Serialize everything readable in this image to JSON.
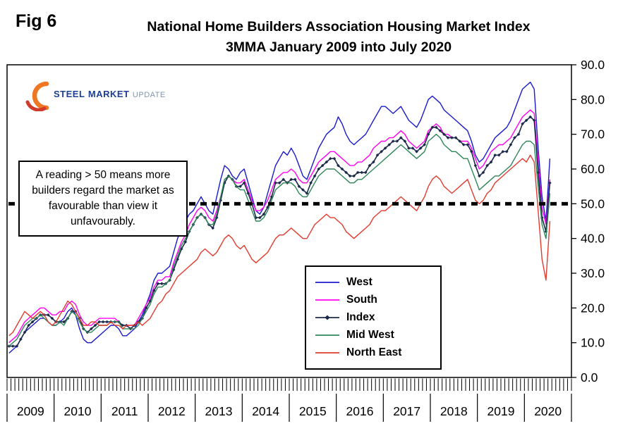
{
  "fig_label": "Fig 6",
  "title": {
    "line1": "National Home Builders Association Housing Market Index",
    "line2": "3MMA January 2009 into July 2020"
  },
  "logo": {
    "steel": "STEEL",
    "market": "MARKET",
    "update": "UPDATE"
  },
  "annotation": {
    "text": "A reading > 50 means more builders regard the market as favourable than view it unfavourably."
  },
  "chart_data": {
    "type": "line",
    "title": "National Home Builders Association Housing Market Index 3MMA January 2009 into July 2020",
    "xlabel": "",
    "ylabel": "",
    "x_unit": "month",
    "data_start": "2009-01",
    "data_end": "2020-07",
    "axis_months_total": 144,
    "years": [
      "2009",
      "2010",
      "2011",
      "2012",
      "2013",
      "2014",
      "2015",
      "2016",
      "2017",
      "2018",
      "2019",
      "2020"
    ],
    "ylim": [
      0,
      90
    ],
    "ytick_step": 10,
    "ytick_labels": [
      "0.0",
      "10.0",
      "20.0",
      "30.0",
      "40.0",
      "50.0",
      "60.0",
      "70.0",
      "80.0",
      "90.0"
    ],
    "grid": false,
    "legend_position": "inside-lower-middle",
    "reference_line": {
      "value": 50,
      "style": "dashed",
      "color": "#000000",
      "width": 5
    },
    "series": [
      {
        "name": "West",
        "color": "#1a1acd",
        "marker": false,
        "values": [
          7,
          8,
          9,
          11,
          13,
          14,
          15,
          16,
          17,
          17,
          16,
          15,
          15,
          16,
          17,
          19,
          20,
          18,
          14,
          11,
          10,
          10,
          11,
          12,
          13,
          14,
          15,
          15,
          14,
          12,
          12,
          13,
          14,
          16,
          18,
          21,
          24,
          28,
          30,
          30,
          31,
          32,
          36,
          40,
          43,
          45,
          47,
          48,
          50,
          52,
          50,
          48,
          47,
          52,
          57,
          61,
          60,
          58,
          57,
          59,
          60,
          56,
          52,
          48,
          47,
          49,
          53,
          57,
          61,
          63,
          65,
          64,
          66,
          64,
          61,
          58,
          57,
          60,
          63,
          66,
          68,
          70,
          71,
          72,
          75,
          73,
          70,
          68,
          67,
          68,
          69,
          70,
          72,
          74,
          76,
          78,
          78,
          77,
          76,
          77,
          78,
          76,
          74,
          73,
          72,
          74,
          77,
          80,
          81,
          80,
          79,
          77,
          76,
          75,
          74,
          73,
          72,
          71,
          68,
          64,
          62,
          63,
          65,
          67,
          69,
          70,
          71,
          72,
          74,
          77,
          80,
          83,
          84,
          85,
          83,
          66,
          52,
          45,
          63
        ]
      },
      {
        "name": "South",
        "color": "#ff00f0",
        "marker": false,
        "values": [
          10,
          11,
          12,
          14,
          16,
          17,
          18,
          19,
          20,
          20,
          19,
          18,
          18,
          19,
          19,
          21,
          22,
          21,
          18,
          16,
          15,
          15,
          16,
          17,
          17,
          17,
          17,
          17,
          16,
          15,
          15,
          15,
          15,
          17,
          19,
          21,
          23,
          26,
          28,
          28,
          29,
          29,
          33,
          36,
          39,
          41,
          44,
          46,
          48,
          49,
          48,
          46,
          45,
          48,
          52,
          56,
          58,
          57,
          56,
          56,
          57,
          54,
          51,
          48,
          48,
          49,
          51,
          54,
          57,
          58,
          59,
          59,
          60,
          59,
          57,
          56,
          56,
          58,
          60,
          62,
          63,
          64,
          65,
          65,
          64,
          63,
          62,
          61,
          61,
          62,
          62,
          63,
          64,
          66,
          67,
          68,
          68,
          69,
          69,
          70,
          71,
          70,
          68,
          67,
          66,
          67,
          68,
          71,
          72,
          73,
          72,
          70,
          70,
          69,
          69,
          68,
          68,
          68,
          66,
          63,
          60,
          61,
          63,
          65,
          66,
          67,
          67,
          68,
          69,
          71,
          73,
          75,
          76,
          77,
          76,
          62,
          49,
          44,
          57
        ]
      },
      {
        "name": "Index",
        "color": "#1b2a4a",
        "marker": true,
        "values": [
          9,
          9,
          9,
          11,
          13,
          15,
          16,
          17,
          18,
          18,
          18,
          17,
          16,
          16,
          16,
          17,
          19,
          19,
          17,
          14,
          13,
          14,
          15,
          16,
          16,
          16,
          16,
          16,
          16,
          15,
          15,
          14,
          15,
          16,
          17,
          20,
          22,
          25,
          27,
          27,
          27,
          28,
          31,
          34,
          37,
          39,
          42,
          44,
          46,
          47,
          46,
          44,
          43,
          46,
          51,
          56,
          58,
          57,
          55,
          55,
          56,
          53,
          50,
          46,
          46,
          47,
          49,
          52,
          56,
          56,
          57,
          56,
          57,
          57,
          55,
          54,
          53,
          56,
          58,
          60,
          61,
          62,
          63,
          63,
          61,
          60,
          59,
          58,
          58,
          59,
          59,
          59,
          61,
          62,
          64,
          65,
          66,
          67,
          68,
          68,
          69,
          68,
          66,
          66,
          65,
          66,
          67,
          70,
          72,
          72,
          71,
          70,
          69,
          69,
          69,
          68,
          67,
          67,
          65,
          61,
          58,
          59,
          61,
          62,
          64,
          64,
          65,
          65,
          67,
          69,
          70,
          73,
          74,
          75,
          74,
          59,
          46,
          42,
          56
        ]
      },
      {
        "name": "Mid West",
        "color": "#2e8659",
        "marker": false,
        "values": [
          9,
          10,
          11,
          13,
          15,
          16,
          17,
          17,
          18,
          17,
          16,
          15,
          15,
          16,
          15,
          17,
          19,
          18,
          16,
          14,
          13,
          13,
          14,
          15,
          15,
          15,
          16,
          16,
          16,
          14,
          14,
          14,
          14,
          15,
          17,
          19,
          21,
          24,
          26,
          26,
          27,
          28,
          32,
          35,
          38,
          40,
          42,
          44,
          46,
          47,
          46,
          44,
          44,
          47,
          52,
          57,
          58,
          57,
          55,
          54,
          54,
          51,
          48,
          45,
          45,
          46,
          48,
          51,
          54,
          55,
          56,
          56,
          56,
          55,
          53,
          52,
          52,
          54,
          56,
          58,
          59,
          60,
          60,
          60,
          59,
          58,
          57,
          56,
          56,
          57,
          57,
          58,
          59,
          60,
          61,
          62,
          63,
          64,
          65,
          66,
          67,
          66,
          65,
          64,
          63,
          64,
          65,
          68,
          69,
          70,
          69,
          67,
          66,
          65,
          65,
          64,
          63,
          63,
          60,
          57,
          54,
          55,
          56,
          57,
          58,
          58,
          59,
          60,
          61,
          63,
          65,
          67,
          68,
          68,
          67,
          55,
          44,
          40,
          53
        ]
      },
      {
        "name": "North East",
        "color": "#e23b2e",
        "marker": false,
        "values": [
          12,
          13,
          15,
          17,
          19,
          18,
          17,
          18,
          19,
          18,
          16,
          15,
          16,
          18,
          20,
          22,
          21,
          19,
          17,
          15,
          15,
          16,
          16,
          15,
          15,
          15,
          16,
          15,
          15,
          14,
          15,
          15,
          15,
          16,
          15,
          16,
          17,
          19,
          21,
          22,
          24,
          25,
          27,
          29,
          30,
          31,
          32,
          33,
          34,
          36,
          37,
          36,
          35,
          36,
          38,
          40,
          41,
          40,
          38,
          37,
          38,
          36,
          34,
          33,
          34,
          35,
          36,
          38,
          40,
          41,
          41,
          42,
          43,
          42,
          41,
          40,
          40,
          42,
          44,
          45,
          46,
          47,
          46,
          46,
          45,
          44,
          42,
          41,
          40,
          41,
          42,
          43,
          44,
          46,
          47,
          48,
          48,
          49,
          50,
          51,
          52,
          51,
          50,
          49,
          48,
          50,
          52,
          55,
          57,
          58,
          57,
          55,
          54,
          53,
          54,
          55,
          56,
          57,
          54,
          51,
          50,
          51,
          53,
          54,
          56,
          57,
          58,
          59,
          60,
          61,
          62,
          63,
          62,
          64,
          62,
          48,
          34,
          28,
          45
        ]
      }
    ]
  }
}
